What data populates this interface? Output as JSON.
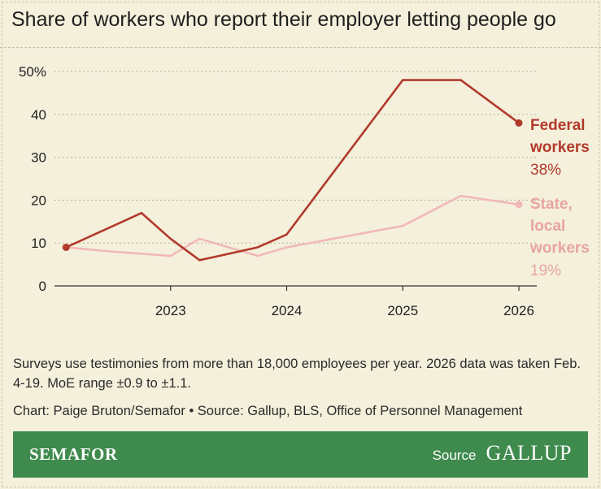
{
  "title": "Share of workers who report their employer letting people go",
  "note": "Surveys use testimonies from more than 18,000 employees per year. 2026 data was taken Feb. 4-19. MoE range ±0.9 to ±1.1.",
  "credit": "Chart: Paige Bruton/Semafor • Source: Gallup, BLS, Office of Personnel Management",
  "footer": {
    "brand": "SEMAFOR",
    "source_label": "Source",
    "source_logo": "GALLUP"
  },
  "colors": {
    "federal": "#b23a2b",
    "state": "#f2b8b8",
    "background": "#f4f0dc",
    "footer": "#3f8a4d"
  },
  "chart_data": {
    "type": "line",
    "title": "Share of workers who report their employer letting people go",
    "xlabel": "",
    "ylabel": "",
    "xlim": [
      2022.25,
      2026.0
    ],
    "ylim": [
      0,
      50
    ],
    "yticks": [
      0,
      10,
      20,
      30,
      40,
      50
    ],
    "ytick_labels": [
      "0",
      "10",
      "20",
      "30",
      "40",
      "50%"
    ],
    "xticks": [
      2023,
      2024,
      2025,
      2026
    ],
    "xtick_labels": [
      "2023",
      "2024",
      "2025",
      "2026"
    ],
    "grid": true,
    "legend": "end-of-line labels",
    "series": [
      {
        "name": "Federal workers",
        "label_lines": [
          "Federal",
          "workers"
        ],
        "value_label": "38%",
        "color": "#b23a2b",
        "x": [
          2022.1,
          2022.75,
          2023.0,
          2023.25,
          2023.75,
          2024.0,
          2025.0,
          2025.5,
          2026.0
        ],
        "y": [
          9,
          17,
          11,
          6,
          9,
          12,
          48,
          48,
          38
        ]
      },
      {
        "name": "State, local workers",
        "label_lines": [
          "State,",
          "local",
          "workers"
        ],
        "value_label": "19%",
        "color": "#f2b8b8",
        "x": [
          2022.1,
          2022.5,
          2023.0,
          2023.25,
          2023.75,
          2024.0,
          2025.0,
          2025.5,
          2026.0
        ],
        "y": [
          9,
          8,
          7,
          11,
          7,
          9,
          14,
          21,
          19
        ]
      }
    ]
  }
}
